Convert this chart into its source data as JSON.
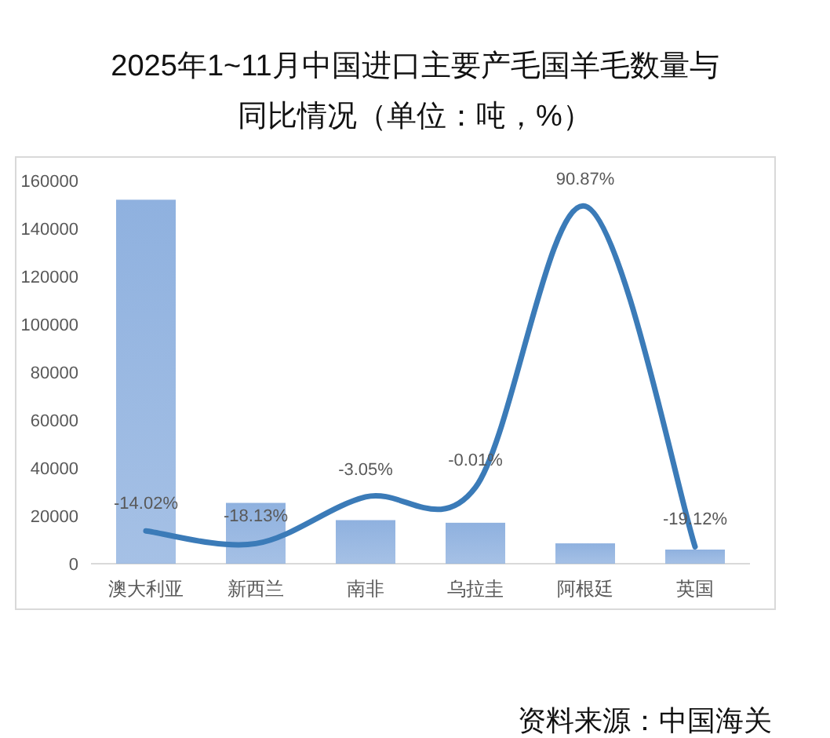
{
  "chart_data": {
    "type": "bar",
    "title": "2025年1~11月中国进口主要产毛国羊毛数量与同比情况（单位：吨，%）",
    "categories": [
      "澳大利亚",
      "新西兰",
      "南非",
      "乌拉圭",
      "阿根廷",
      "英国"
    ],
    "series": [
      {
        "color": "#8fb1df",
        "values": [
          152000,
          25400,
          18200,
          17100,
          8500,
          5900
        ]
      },
      {
        "type": "line",
        "axis": "y2",
        "color": "#3b7bb8",
        "values": [
          -14.02,
          -18.13,
          -3.05,
          -0.01,
          90.87,
          -19.12
        ],
        "value_labels": [
          "-14.02%",
          "-18.13%",
          "-3.05%",
          "-0.01%",
          "90.87%",
          "-19.12%"
        ]
      }
    ],
    "ylim": [
      0,
      160000
    ],
    "yticks": [
      0,
      20000,
      40000,
      60000,
      80000,
      100000,
      120000,
      140000,
      160000
    ],
    "tick_labels": "xy",
    "grid": false,
    "annotations": [
      "资料来源：中国海关"
    ]
  }
}
